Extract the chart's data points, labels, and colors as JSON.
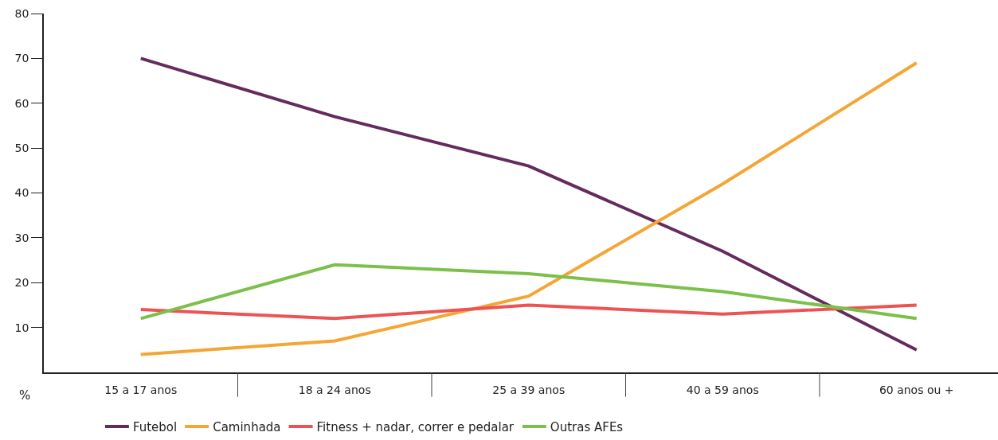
{
  "chart_data": {
    "type": "line",
    "ylabel": "%",
    "categories": [
      "15 a 17 anos",
      "18 a 24 anos",
      "25 a 39 anos",
      "40 a 59 anos",
      "60 anos ou +"
    ],
    "series": [
      {
        "name": "Futebol",
        "color": "#642c5c",
        "values": [
          70,
          57,
          46,
          27,
          5
        ]
      },
      {
        "name": "Caminhada",
        "color": "#f5a534",
        "values": [
          4,
          7,
          17,
          42,
          69
        ]
      },
      {
        "name": "Fitness + nadar, correr e pedalar",
        "color": "#ee5353",
        "values": [
          14,
          12,
          15,
          13,
          15
        ]
      },
      {
        "name": "Outras AFEs",
        "color": "#7cc04b",
        "values": [
          12,
          24,
          22,
          18,
          12
        ]
      }
    ],
    "ylim": [
      0,
      80
    ],
    "yticks": [
      10,
      20,
      30,
      40,
      50,
      60,
      70,
      80
    ],
    "grid": false,
    "legend": "bottom",
    "line_style": "solid"
  }
}
